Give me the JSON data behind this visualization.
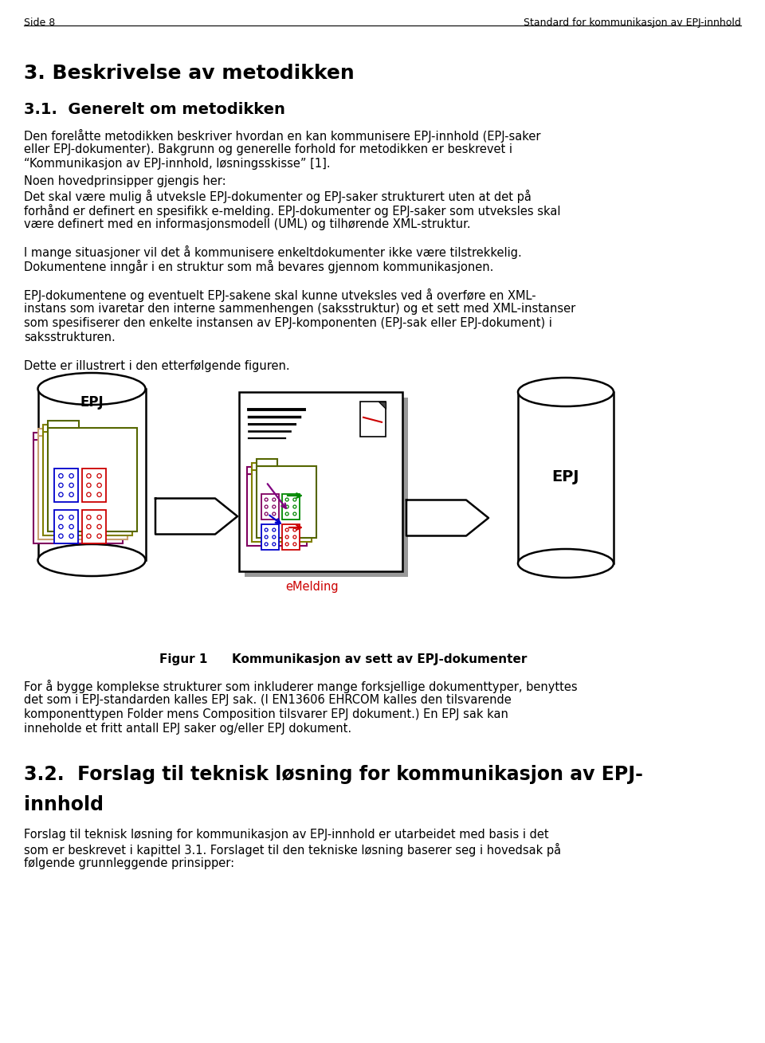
{
  "header_left": "Side 8",
  "header_right": "Standard for kommunikasjon av EPJ-innhold",
  "section3_title": "3. Beskrivelse av metodikken",
  "section31_title": "3.1.  Generelt om metodikken",
  "para1a": "Den forelåtte metodikken beskriver hvordan en kan kommunisere EPJ-innhold (EPJ-saker",
  "para1b": "eller EPJ-dokumenter). Bakgrunn og generelle forhold for metodikken er beskrevet i",
  "para1c": "“Kommunikasjon av EPJ-innhold, løsningsskisse” [1].",
  "para2a": "Noen hovedprinsipper gjengis her:",
  "para2b": "Det skal være mulig å utveksle EPJ-dokumenter og EPJ-saker strukturert uten at det på",
  "para2c": "forhånd er definert en spesifikk e-melding. EPJ-dokumenter og EPJ-saker som utveksles skal",
  "para2d": "være definert med en informasjonsmodell (UML) og tilhørende XML-struktur.",
  "para3a": "I mange situasjoner vil det å kommunisere enkeltdokumenter ikke være tilstrekkelig.",
  "para3b": "Dokumentene inngår i en struktur som må bevares gjennom kommunikasjonen.",
  "para4a": "EPJ-dokumentene og eventuelt EPJ-sakene skal kunne utveksles ved å overføre en XML-",
  "para4b": "instans som ivaretar den interne sammenhengen (saksstruktur) og et sett med XML-instanser",
  "para4c": "som spesifiserer den enkelte instansen av EPJ-komponenten (EPJ-sak eller EPJ-dokument) i",
  "para4d": "saksstrukturen.",
  "para5": "Dette er illustrert i den etterfølgende figuren.",
  "fig_caption_bold": "Figur 1",
  "fig_caption_rest": "    Kommunikasjon av sett av EPJ-dokumenter",
  "para6a": "For å bygge komplekse strukturer som inkluderer mange forksjellige dokumenttyper, benyttes",
  "para6b": "det som i EPJ-standarden kalles EPJ sak. (I EN13606 EHRCOM kalles den tilsvarende",
  "para6c": "komponenttypen Folder mens Composition tilsvarer EPJ dokument.) En EPJ sak kan",
  "para6d": "inneholde et fritt antall EPJ saker og/eller EPJ dokument.",
  "section32_title1": "3.2.  Forslag til teknisk løsning for kommunikasjon av EPJ-",
  "section32_title2": "innhold",
  "para7a": "Forslag til teknisk løsning for kommunikasjon av EPJ-innhold er utarbeidet med basis i det",
  "para7b": "som er beskrevet i kapittel 3.1. Forslaget til den tekniske løsning baserer seg i hovedsak på",
  "para7c": "følgende grunnleggende prinsipper:",
  "bg_color": "#ffffff",
  "text_color": "#000000"
}
